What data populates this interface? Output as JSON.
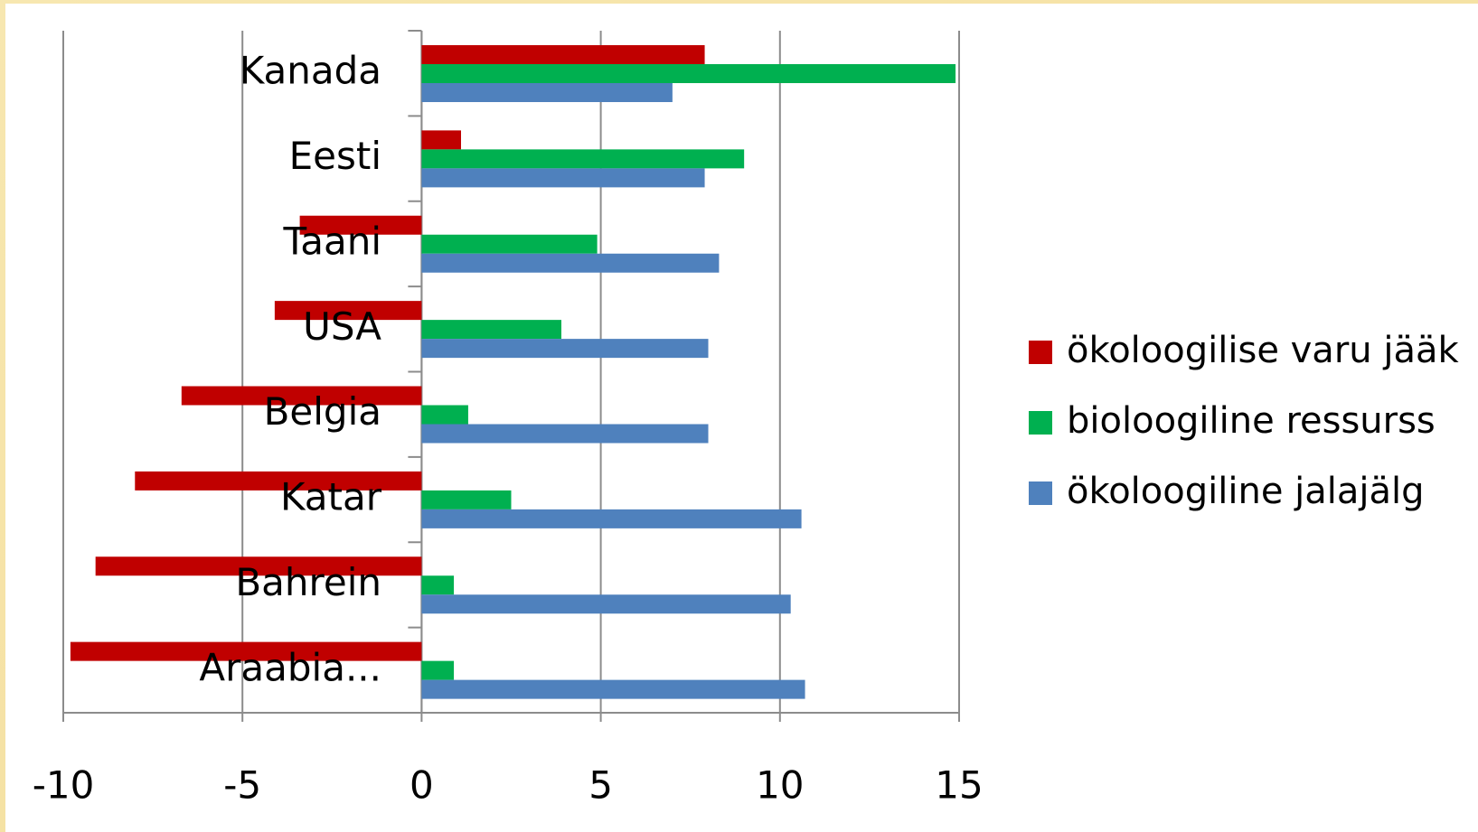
{
  "chart_data": {
    "type": "bar",
    "orientation": "horizontal",
    "categories": [
      "Kanada",
      "Eesti",
      "Taani",
      "USA",
      "Belgia",
      "Katar",
      "Bahrein",
      "Araabia..."
    ],
    "series": [
      {
        "name": "ökoloogilise varu jääk",
        "color": "#c00000",
        "values": [
          7.9,
          1.1,
          -3.4,
          -4.1,
          -6.7,
          -8.0,
          -9.1,
          -9.8
        ]
      },
      {
        "name": "bioloogiline ressurss",
        "color": "#00b050",
        "values": [
          14.9,
          9.0,
          4.9,
          3.9,
          1.3,
          2.5,
          0.9,
          0.9
        ]
      },
      {
        "name": "ökoloogiline jalajälg",
        "color": "#4f81bd",
        "values": [
          7.0,
          7.9,
          8.3,
          8.0,
          8.0,
          10.6,
          10.3,
          10.7
        ]
      }
    ],
    "xlim": [
      -10,
      15
    ],
    "xticks": [
      -10,
      -5,
      0,
      5,
      10,
      15
    ],
    "grid": true,
    "legend": "right"
  }
}
